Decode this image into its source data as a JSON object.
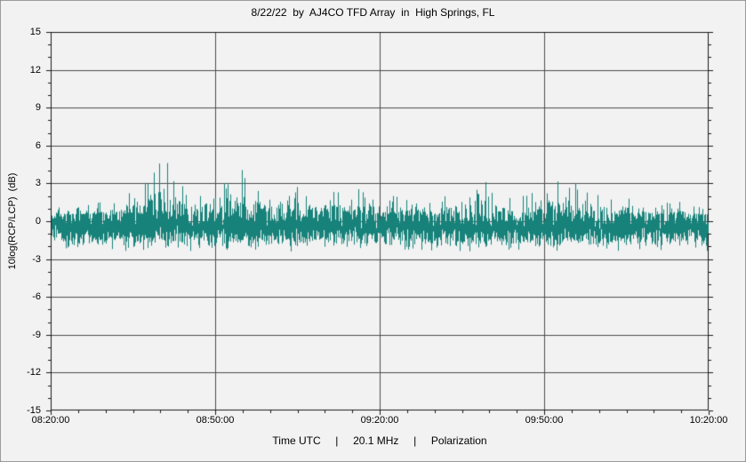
{
  "chart_data": {
    "type": "line",
    "title": "8/22/22  by  AJ4CO TFD Array  in  High Springs, FL",
    "ylabel": "10log(RCP/LCP)  (dB)",
    "xlabel": "Time UTC     |     20.1 MHz     |     Polarization",
    "x_ticks": [
      "08:20:00",
      "08:50:00",
      "09:20:00",
      "09:50:00",
      "10:20:00"
    ],
    "y_ticks": [
      15,
      12,
      9,
      6,
      3,
      0,
      -3,
      -6,
      -9,
      -12,
      -15
    ],
    "ylim": [
      -15,
      15
    ],
    "x_span_minutes": 120,
    "x_major_step_minutes": 30,
    "x_minor_step_minutes": 5,
    "y_minor_step": 1,
    "grid": true,
    "legend_position": "none",
    "colors": {
      "trace": "#17827a",
      "grid": "#4d4d4d",
      "axis": "#1a1a1a",
      "background": "#f2f2f2",
      "text": "#000000",
      "frame_outer": "#8f8f8f",
      "frame_inner": "#ffffff"
    },
    "noise_seed": 20220822,
    "series": [
      {
        "name": "10log(RCP/LCP) (dB)",
        "description": "dense noise band around 0 dB with burst spikes",
        "baseline_mean": -0.5,
        "baseline_sigma": 0.62,
        "noise_floor": -2.05,
        "spike_probability": 0.3,
        "envelope_max": [
          [
            0,
            1.1
          ],
          [
            6,
            1.3
          ],
          [
            10,
            1.6
          ],
          [
            13,
            2.0
          ],
          [
            16,
            2.6
          ],
          [
            18,
            3.4
          ],
          [
            20,
            4.8
          ],
          [
            21,
            5.0
          ],
          [
            22,
            4.2
          ],
          [
            23,
            3.4
          ],
          [
            25,
            2.4
          ],
          [
            27,
            2.6
          ],
          [
            28,
            2.8
          ],
          [
            30,
            2.5
          ],
          [
            32,
            3.4
          ],
          [
            34,
            4.5
          ],
          [
            35,
            4.0
          ],
          [
            36,
            3.4
          ],
          [
            38,
            3.0
          ],
          [
            40,
            2.6
          ],
          [
            42,
            2.4
          ],
          [
            44,
            2.6
          ],
          [
            46,
            3.0
          ],
          [
            48,
            2.9
          ],
          [
            50,
            2.4
          ],
          [
            52,
            2.5
          ],
          [
            54,
            2.8
          ],
          [
            56,
            2.9
          ],
          [
            58,
            2.4
          ],
          [
            60,
            2.1
          ],
          [
            63,
            2.2
          ],
          [
            66,
            1.9
          ],
          [
            69,
            1.8
          ],
          [
            72,
            2.2
          ],
          [
            75,
            2.1
          ],
          [
            77,
            2.6
          ],
          [
            79,
            3.4
          ],
          [
            81,
            2.6
          ],
          [
            83,
            1.9
          ],
          [
            85,
            2.0
          ],
          [
            87,
            2.3
          ],
          [
            89,
            2.2
          ],
          [
            91,
            3.0
          ],
          [
            92,
            3.4
          ],
          [
            94,
            3.2
          ],
          [
            96,
            3.0
          ],
          [
            98,
            2.7
          ],
          [
            100,
            2.4
          ],
          [
            102,
            2.3
          ],
          [
            104,
            2.6
          ],
          [
            106,
            1.9
          ],
          [
            108,
            1.6
          ],
          [
            111,
            1.5
          ],
          [
            114,
            1.6
          ],
          [
            117,
            1.3
          ],
          [
            120,
            1.1
          ]
        ]
      }
    ]
  }
}
